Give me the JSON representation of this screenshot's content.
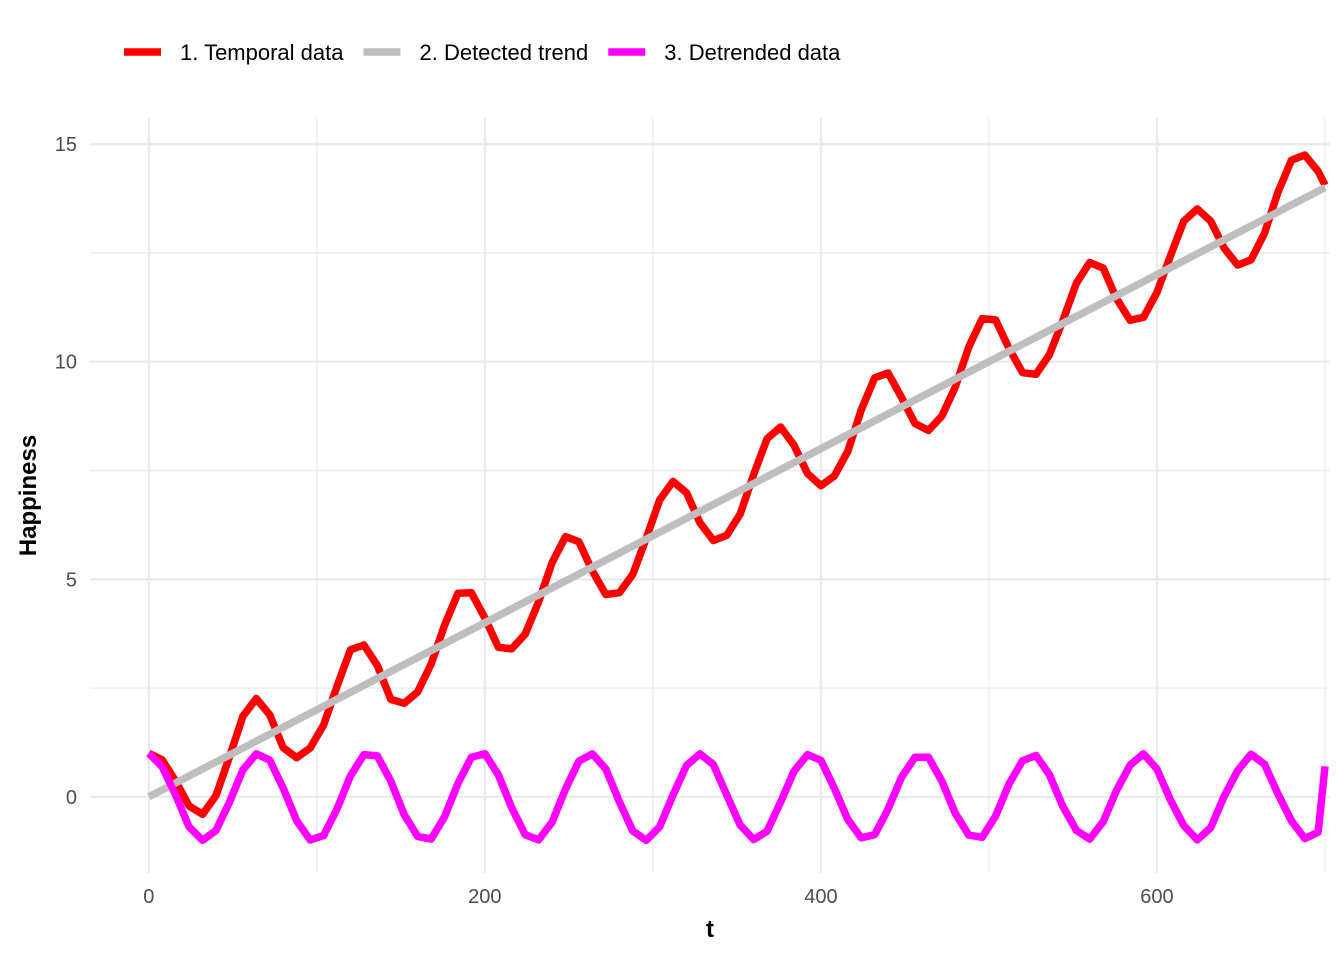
{
  "chart_data": {
    "type": "line",
    "xlabel": "t",
    "ylabel": "Happiness",
    "xlim": [
      -35,
      703
    ],
    "ylim": [
      -1.75,
      15.6
    ],
    "x_ticks": [
      0,
      200,
      400,
      600
    ],
    "x_tick_labels": [
      "0",
      "200",
      "400",
      "600"
    ],
    "y_ticks": [
      0,
      5,
      10,
      15
    ],
    "y_tick_labels": [
      "0",
      "5",
      "10",
      "15"
    ],
    "grid": true,
    "legend_position": "top-left",
    "series": [
      {
        "name": "1. Temporal data",
        "color": "#ff0000",
        "x": [
          0,
          8,
          16,
          24,
          32,
          40,
          48,
          56,
          64,
          72,
          80,
          88,
          96,
          104,
          112,
          120,
          128,
          136,
          144,
          152,
          160,
          168,
          176,
          184,
          192,
          200,
          208,
          216,
          224,
          232,
          240,
          248,
          256,
          264,
          272,
          280,
          288,
          296,
          304,
          312,
          320,
          328,
          336,
          344,
          352,
          360,
          368,
          376,
          384,
          392,
          400,
          408,
          416,
          424,
          432,
          440,
          448,
          456,
          464,
          472,
          480,
          488,
          496,
          504,
          512,
          520,
          528,
          536,
          544,
          552,
          560,
          568,
          576,
          584,
          592,
          600,
          608,
          616,
          624,
          632,
          640,
          648,
          656,
          664,
          672,
          680,
          688,
          696,
          700
        ],
        "y": [
          1.0,
          0.85,
          0.36,
          -0.21,
          -0.4,
          0.03,
          0.92,
          1.85,
          2.26,
          1.88,
          1.13,
          0.9,
          1.12,
          1.65,
          2.54,
          3.38,
          3.49,
          3.02,
          2.24,
          2.15,
          2.41,
          3.05,
          3.94,
          4.68,
          4.69,
          4.11,
          3.44,
          3.4,
          3.74,
          4.48,
          5.38,
          5.98,
          5.86,
          5.19,
          4.65,
          4.69,
          5.11,
          5.94,
          6.82,
          7.25,
          6.99,
          6.3,
          5.89,
          6.01,
          6.5,
          7.41,
          8.23,
          8.5,
          8.08,
          7.43,
          7.15,
          7.37,
          7.94,
          8.89,
          9.63,
          9.74,
          9.18,
          8.58,
          8.42,
          8.75,
          9.42,
          10.34,
          10.99,
          10.96,
          10.3,
          9.75,
          9.71,
          10.16,
          10.94,
          11.8,
          12.28,
          12.15,
          11.45,
          10.95,
          11.02,
          11.59,
          12.43,
          13.23,
          13.51,
          13.23,
          12.61,
          12.22,
          12.34,
          12.95,
          13.89,
          14.63,
          14.75,
          14.37,
          14.06
        ]
      },
      {
        "name": "2. Detected trend",
        "color": "#bebebe",
        "x": [
          0,
          700
        ],
        "y": [
          0,
          14
        ]
      },
      {
        "name": "3. Detrended data",
        "color": "#ff00ff",
        "x": [
          0,
          8,
          16,
          24,
          32,
          40,
          48,
          56,
          64,
          72,
          80,
          88,
          96,
          104,
          112,
          120,
          128,
          136,
          144,
          152,
          160,
          168,
          176,
          184,
          192,
          200,
          208,
          216,
          224,
          232,
          240,
          248,
          256,
          264,
          272,
          280,
          288,
          296,
          304,
          312,
          320,
          328,
          336,
          344,
          352,
          360,
          368,
          376,
          384,
          392,
          400,
          408,
          416,
          424,
          432,
          440,
          448,
          456,
          464,
          472,
          480,
          488,
          496,
          504,
          512,
          520,
          528,
          536,
          544,
          552,
          560,
          568,
          576,
          584,
          592,
          600,
          608,
          616,
          624,
          632,
          640,
          648,
          656,
          664,
          672,
          680,
          688,
          696,
          700
        ],
        "y": [
          1.0,
          0.69,
          0.04,
          -0.69,
          -1.0,
          -0.77,
          -0.12,
          0.62,
          0.99,
          0.84,
          0.2,
          -0.55,
          -0.99,
          -0.89,
          -0.28,
          0.48,
          0.97,
          0.94,
          0.36,
          -0.41,
          -0.91,
          -0.97,
          -0.46,
          0.31,
          0.91,
          0.99,
          0.51,
          -0.25,
          -0.87,
          -0.99,
          -0.58,
          0.18,
          0.82,
          0.99,
          0.64,
          -0.11,
          -0.78,
          -1.0,
          -0.69,
          0.04,
          0.72,
          0.99,
          0.74,
          0.04,
          -0.65,
          -0.98,
          -0.79,
          -0.12,
          0.59,
          0.97,
          0.84,
          0.2,
          -0.52,
          -0.94,
          -0.87,
          -0.28,
          0.45,
          0.91,
          0.91,
          0.36,
          -0.38,
          -0.88,
          -0.93,
          -0.44,
          0.3,
          0.83,
          0.95,
          0.51,
          -0.22,
          -0.77,
          -0.97,
          -0.57,
          0.15,
          0.73,
          0.99,
          0.64,
          -0.07,
          -0.66,
          -0.99,
          -0.71,
          0.01,
          0.6,
          0.98,
          0.75,
          0.07,
          -0.55,
          -0.96,
          -0.81,
          0.7
        ]
      }
    ]
  }
}
